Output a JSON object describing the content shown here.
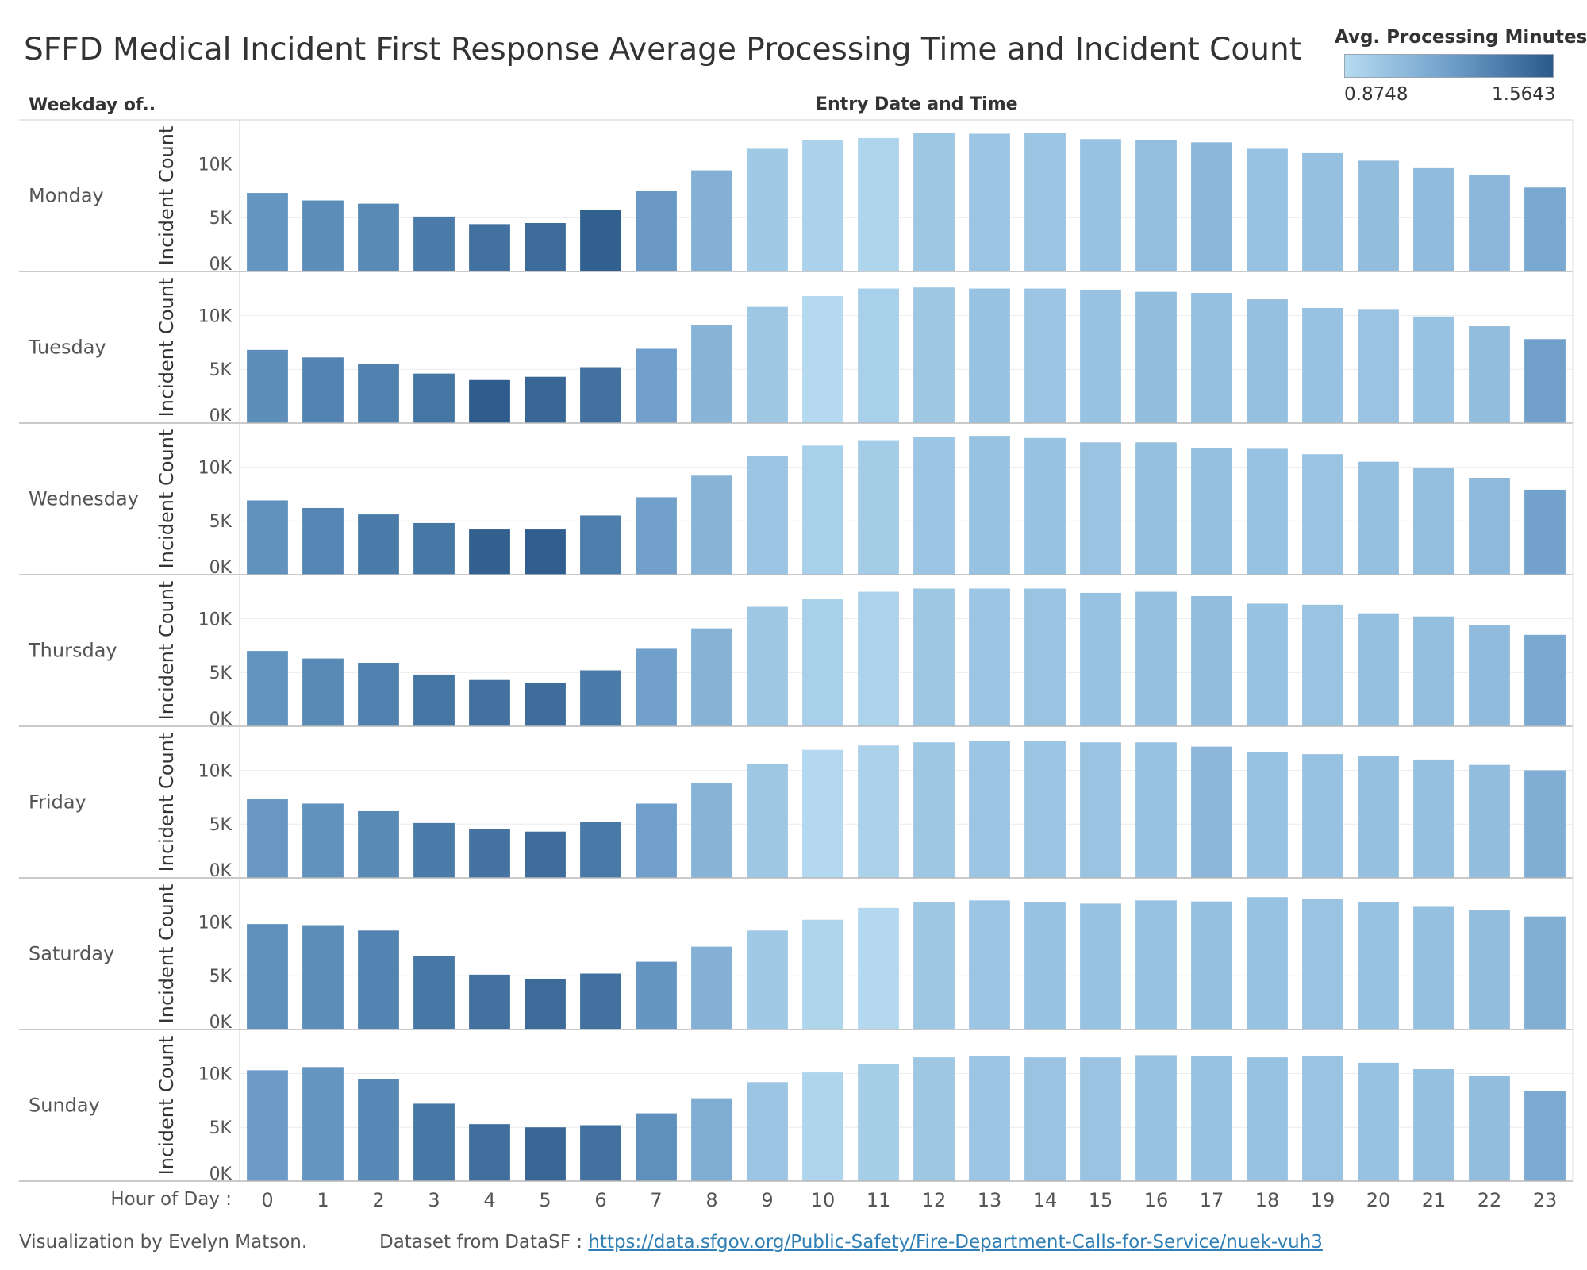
{
  "title": "SFFD Medical Incident First Response Average Processing Time and Incident Count",
  "legend": {
    "title": "Avg. Processing Minutes",
    "min_label": "0.8748",
    "max_label": "1.5643",
    "color_low": "#b6dbf1",
    "color_high": "#2b5a8a"
  },
  "row_header": "Weekday of..",
  "col_header": "Entry Date and Time",
  "x_axis_label": "Hour of Day :",
  "footer": {
    "credit": "Visualization by Evelyn Matson.",
    "dataset_prefix": "Dataset from DataSF :",
    "dataset_link": "https://data.sfgov.org/Public-Safety/Fire-Department-Calls-for-Service/nuek-vuh3"
  },
  "chart_data": {
    "type": "bar",
    "title": "SFFD Medical Incident First Response Average Processing Time and Incident Count",
    "xlabel": "Hour of Day",
    "ylabel": "Incident Count",
    "ylim": [
      0,
      13500
    ],
    "yticks": [
      0,
      5000,
      10000
    ],
    "ytick_labels": [
      "0K",
      "5K",
      "10K"
    ],
    "color_measure": "Avg. Processing Minutes",
    "color_range": [
      0.8748,
      1.5643
    ],
    "categories": [
      "0",
      "1",
      "2",
      "3",
      "4",
      "5",
      "6",
      "7",
      "8",
      "9",
      "10",
      "11",
      "12",
      "13",
      "14",
      "15",
      "16",
      "17",
      "18",
      "19",
      "20",
      "21",
      "22",
      "23"
    ],
    "series": [
      {
        "name": "Monday",
        "values": [
          7300,
          6600,
          6300,
          5100,
          4400,
          4500,
          5700,
          7500,
          9400,
          11400,
          12200,
          12400,
          12900,
          12800,
          12900,
          12300,
          12200,
          12000,
          11400,
          11000,
          10300,
          9600,
          9000,
          7800
        ],
        "color_values": [
          1.27,
          1.31,
          1.33,
          1.4,
          1.45,
          1.48,
          1.53,
          1.25,
          1.12,
          0.98,
          0.93,
          0.91,
          0.99,
          1.0,
          1.0,
          1.02,
          1.04,
          1.09,
          1.02,
          1.03,
          1.05,
          1.06,
          1.08,
          1.17
        ]
      },
      {
        "name": "Tuesday",
        "values": [
          6800,
          6100,
          5500,
          4600,
          4000,
          4300,
          5200,
          6900,
          9100,
          10800,
          11800,
          12500,
          12600,
          12500,
          12500,
          12400,
          12200,
          12100,
          11500,
          10700,
          10600,
          9900,
          9000,
          7800
        ],
        "color_values": [
          1.31,
          1.36,
          1.37,
          1.43,
          1.55,
          1.5,
          1.45,
          1.22,
          1.1,
          0.99,
          0.88,
          0.94,
          0.99,
          1.02,
          1.0,
          1.02,
          1.05,
          1.03,
          1.03,
          1.02,
          1.01,
          1.02,
          1.05,
          1.21
        ]
      },
      {
        "name": "Wednesday",
        "values": [
          6900,
          6200,
          5600,
          4800,
          4200,
          4200,
          5500,
          7200,
          9200,
          11000,
          12000,
          12500,
          12800,
          12900,
          12700,
          12300,
          12300,
          11800,
          11700,
          11200,
          10500,
          9900,
          9000,
          7900
        ],
        "color_values": [
          1.29,
          1.35,
          1.4,
          1.42,
          1.53,
          1.54,
          1.39,
          1.21,
          1.1,
          1.0,
          0.94,
          0.96,
          1.0,
          1.02,
          1.02,
          1.01,
          1.03,
          1.03,
          1.02,
          1.01,
          1.03,
          1.04,
          1.07,
          1.2
        ]
      },
      {
        "name": "Thursday",
        "values": [
          7000,
          6300,
          5900,
          4800,
          4300,
          4000,
          5200,
          7200,
          9100,
          11100,
          11800,
          12500,
          12800,
          12800,
          12800,
          12400,
          12500,
          12100,
          11400,
          11300,
          10500,
          10200,
          9400,
          8500
        ],
        "color_values": [
          1.28,
          1.33,
          1.37,
          1.43,
          1.45,
          1.47,
          1.4,
          1.21,
          1.11,
          0.99,
          0.94,
          0.92,
          0.99,
          1.0,
          1.01,
          1.02,
          1.03,
          1.05,
          1.02,
          1.01,
          1.03,
          1.04,
          1.06,
          1.17
        ]
      },
      {
        "name": "Friday",
        "values": [
          7300,
          6900,
          6200,
          5100,
          4500,
          4300,
          5200,
          6900,
          8800,
          10600,
          11900,
          12300,
          12600,
          12700,
          12700,
          12600,
          12600,
          12200,
          11700,
          11500,
          11300,
          11000,
          10500,
          10000
        ],
        "color_values": [
          1.26,
          1.29,
          1.33,
          1.4,
          1.44,
          1.47,
          1.41,
          1.22,
          1.1,
          0.99,
          0.89,
          0.93,
          0.99,
          1.0,
          1.0,
          1.01,
          1.02,
          1.08,
          1.02,
          1.02,
          1.03,
          1.03,
          1.05,
          1.14
        ]
      },
      {
        "name": "Saturday",
        "values": [
          9800,
          9700,
          9200,
          6800,
          5100,
          4700,
          5200,
          6300,
          7700,
          9200,
          10200,
          11300,
          11800,
          12000,
          11800,
          11700,
          12000,
          11900,
          12300,
          12100,
          11800,
          11400,
          11100,
          10500
        ],
        "color_values": [
          1.3,
          1.31,
          1.36,
          1.42,
          1.45,
          1.48,
          1.45,
          1.27,
          1.12,
          0.98,
          0.91,
          0.89,
          0.99,
          1.0,
          1.02,
          1.02,
          1.02,
          1.03,
          1.02,
          1.01,
          1.02,
          1.03,
          1.05,
          1.13
        ]
      },
      {
        "name": "Sunday",
        "values": [
          10300,
          10600,
          9500,
          7200,
          5300,
          5000,
          5200,
          6300,
          7700,
          9200,
          10100,
          10900,
          11500,
          11600,
          11500,
          11500,
          11700,
          11600,
          11500,
          11600,
          11000,
          10400,
          9800,
          8400
        ],
        "color_values": [
          1.24,
          1.27,
          1.34,
          1.42,
          1.46,
          1.5,
          1.45,
          1.3,
          1.14,
          1.0,
          0.91,
          0.95,
          0.99,
          1.0,
          1.01,
          1.01,
          1.02,
          1.02,
          1.02,
          1.01,
          1.02,
          1.03,
          1.05,
          1.16
        ]
      }
    ]
  }
}
